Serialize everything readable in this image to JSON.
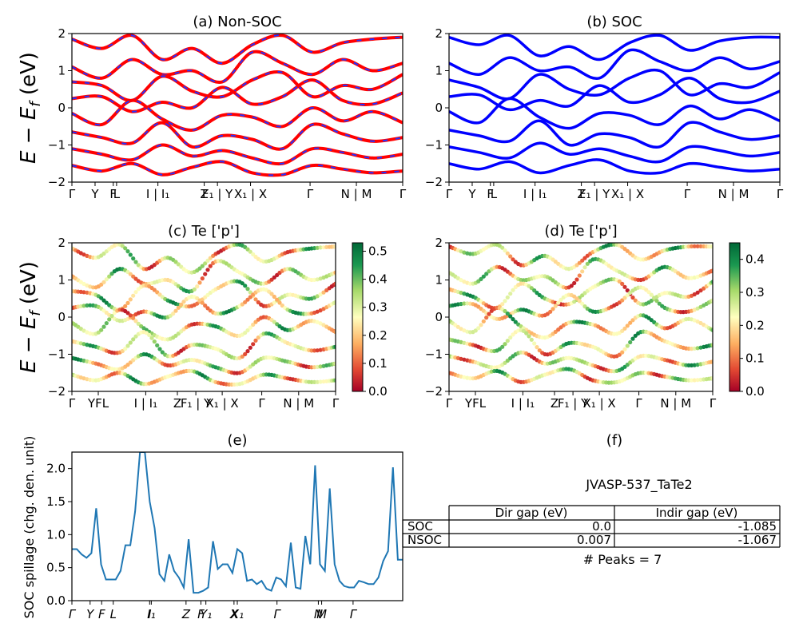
{
  "chart_data": [
    {
      "id": "a",
      "type": "line",
      "title": "(a) Non-SOC",
      "ylabel": "E - E_f (eV)",
      "ylim": [
        -2,
        2
      ],
      "yticks": [
        "2",
        "1",
        "0",
        "−1",
        "−2"
      ],
      "xticks": [
        "Γ",
        "Y",
        "F",
        "L",
        "I | I₁",
        "Z",
        "F₁ | Y",
        "X₁ | X",
        "Γ",
        "N | M",
        "Γ"
      ],
      "series": [
        {
          "values": [
            1.85,
            1.6,
            1.95,
            1.3,
            1.6,
            1.2,
            1.7,
            1.95,
            1.5,
            1.75,
            1.85,
            1.9
          ]
        },
        {
          "values": [
            1.1,
            0.8,
            1.3,
            0.9,
            1.0,
            0.7,
            1.5,
            1.2,
            0.9,
            1.3,
            1.0,
            1.2
          ]
        },
        {
          "values": [
            0.7,
            0.6,
            0.2,
            0.85,
            0.45,
            0.3,
            0.75,
            0.95,
            0.3,
            0.6,
            0.5,
            0.9
          ]
        },
        {
          "values": [
            0.25,
            0.3,
            -0.1,
            0.15,
            0.0,
            0.55,
            0.1,
            0.3,
            0.75,
            0.2,
            0.1,
            0.4
          ]
        },
        {
          "values": [
            -0.15,
            -0.45,
            0.2,
            -0.3,
            -0.6,
            -0.2,
            -0.25,
            -0.5,
            0.0,
            -0.35,
            -0.1,
            -0.4
          ]
        },
        {
          "values": [
            -0.65,
            -0.8,
            -0.95,
            -0.4,
            -1.05,
            -0.75,
            -0.85,
            -1.1,
            -0.45,
            -0.7,
            -0.9,
            -0.8
          ]
        },
        {
          "values": [
            -1.1,
            -1.25,
            -1.4,
            -1.0,
            -1.3,
            -1.15,
            -1.35,
            -1.5,
            -1.1,
            -1.2,
            -1.35,
            -1.25
          ]
        },
        {
          "values": [
            -1.55,
            -1.7,
            -1.5,
            -1.8,
            -1.6,
            -1.45,
            -1.75,
            -1.8,
            -1.55,
            -1.65,
            -1.75,
            -1.7
          ]
        }
      ],
      "colors": [
        "#ff0000",
        "#2233ff"
      ]
    },
    {
      "id": "b",
      "type": "line",
      "title": "(b) SOC",
      "ylim": [
        -2,
        2
      ],
      "yticks": [
        "2",
        "1",
        "0",
        "−1",
        "−2"
      ],
      "xticks": [
        "Γ",
        "Y",
        "F",
        "L",
        "I | I₁",
        "Z",
        "F₁ | Y",
        "X₁ | X",
        "Γ",
        "N | M",
        "Γ"
      ],
      "series": [
        {
          "values": [
            1.9,
            1.7,
            1.95,
            1.4,
            1.65,
            1.3,
            1.75,
            1.95,
            1.55,
            1.8,
            1.9,
            1.9
          ]
        },
        {
          "values": [
            1.2,
            0.9,
            1.35,
            1.0,
            1.1,
            0.8,
            1.55,
            1.25,
            1.0,
            1.35,
            1.05,
            1.25
          ]
        },
        {
          "values": [
            0.75,
            0.55,
            0.25,
            0.9,
            0.5,
            0.35,
            0.8,
            1.0,
            0.35,
            0.65,
            0.55,
            0.95
          ]
        },
        {
          "values": [
            0.3,
            0.35,
            -0.05,
            0.2,
            0.05,
            0.6,
            0.15,
            0.35,
            0.8,
            0.25,
            0.15,
            0.45
          ]
        },
        {
          "values": [
            -0.1,
            -0.4,
            0.25,
            -0.25,
            -0.55,
            -0.15,
            -0.2,
            -0.45,
            0.05,
            -0.3,
            -0.05,
            -0.35
          ]
        },
        {
          "values": [
            -0.6,
            -0.75,
            -0.9,
            -0.35,
            -1.0,
            -0.7,
            -0.8,
            -1.05,
            -0.4,
            -0.65,
            -0.85,
            -0.75
          ]
        },
        {
          "values": [
            -1.05,
            -1.2,
            -1.35,
            -0.95,
            -1.25,
            -1.1,
            -1.3,
            -1.45,
            -1.05,
            -1.15,
            -1.3,
            -1.2
          ]
        },
        {
          "values": [
            -1.5,
            -1.65,
            -1.45,
            -1.75,
            -1.55,
            -1.4,
            -1.7,
            -1.75,
            -1.5,
            -1.6,
            -1.7,
            -1.65
          ]
        }
      ],
      "colors": [
        "#0000ff"
      ]
    },
    {
      "id": "c",
      "type": "scatter",
      "title": "(c)  Te ['p']",
      "ylabel": "E - E_f (eV)",
      "ylim": [
        -2,
        2
      ],
      "yticks": [
        "2",
        "1",
        "0",
        "−1",
        "−2"
      ],
      "xticks": [
        "Γ",
        "YFL",
        "I | I₁",
        "Z",
        "F₁ | Y",
        "X₁ | X",
        "Γ",
        "N | M",
        "Γ"
      ],
      "colorbar": {
        "min": 0.0,
        "max": 0.53,
        "ticks": [
          "0.5",
          "0.4",
          "0.3",
          "0.2",
          "0.1",
          "0.0"
        ]
      }
    },
    {
      "id": "d",
      "type": "scatter",
      "title": "(d) Te ['p']",
      "ylim": [
        -2,
        2
      ],
      "yticks": [
        "2",
        "1",
        "0",
        "−1",
        "−2"
      ],
      "xticks": [
        "Γ",
        "YFL",
        "I | I₁",
        "Z",
        "F₁ | Y",
        "X₁ | X",
        "Γ",
        "N | M",
        "Γ"
      ],
      "colorbar": {
        "min": 0.0,
        "max": 0.45,
        "ticks": [
          "0.4",
          "0.3",
          "0.2",
          "0.1",
          "0.0"
        ]
      }
    },
    {
      "id": "e",
      "type": "line",
      "title": "(e)",
      "ylabel": "SOC spillage (chg. den. unit)",
      "ylim": [
        0,
        2.25
      ],
      "yticks": [
        "2.0",
        "1.5",
        "1.0",
        "0.5",
        "0.0"
      ],
      "xticks": [
        "Γ",
        "Y",
        "F",
        "L",
        "I",
        "I₁",
        "Z",
        "F",
        "Y₁",
        "X",
        "X₁",
        "Γ",
        "N",
        "M",
        "Γ"
      ],
      "color": "#1f77b4",
      "y": [
        0.78,
        0.78,
        0.7,
        0.65,
        0.72,
        1.4,
        0.55,
        0.32,
        0.32,
        0.32,
        0.45,
        0.84,
        0.84,
        1.35,
        2.25,
        2.25,
        1.5,
        1.1,
        0.4,
        0.3,
        0.7,
        0.45,
        0.35,
        0.2,
        0.93,
        0.12,
        0.12,
        0.15,
        0.2,
        0.9,
        0.48,
        0.55,
        0.55,
        0.42,
        0.78,
        0.72,
        0.3,
        0.32,
        0.25,
        0.3,
        0.18,
        0.15,
        0.35,
        0.32,
        0.22,
        0.88,
        0.2,
        0.18,
        0.98,
        0.55,
        2.05,
        0.55,
        0.45,
        1.7,
        0.55,
        0.3,
        0.22,
        0.2,
        0.2,
        0.3,
        0.28,
        0.25,
        0.25,
        0.35,
        0.6,
        0.75,
        2.02,
        0.62,
        0.62
      ]
    }
  ],
  "panel_f": {
    "title": "(f)",
    "material": "JVASP-537_TaTe2",
    "table_headers": [
      "Dir gap (eV)",
      "Indir gap (eV)"
    ],
    "rows": [
      {
        "label": "SOC",
        "dir": "0.0",
        "indir": "-1.085"
      },
      {
        "label": "NSOC",
        "dir": "0.007",
        "indir": "-1.067"
      }
    ],
    "peaks": "# Peaks = 7"
  }
}
